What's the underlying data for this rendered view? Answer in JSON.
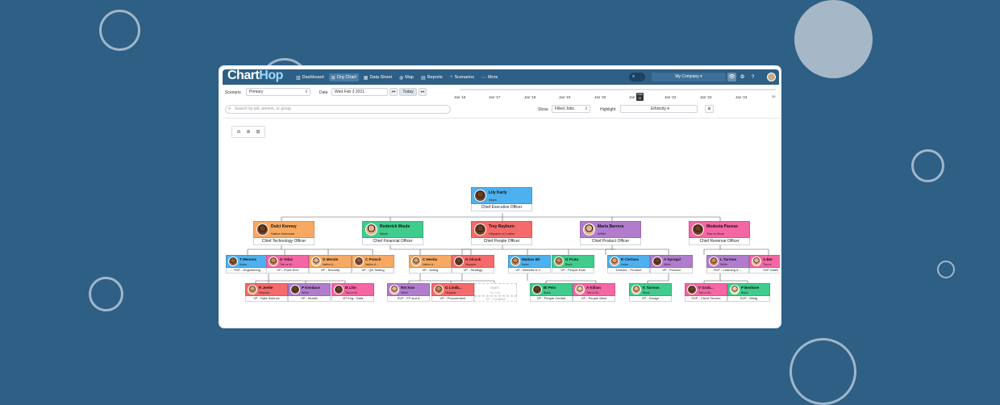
{
  "colors": {
    "background": "#2e5f85",
    "blue": "#4db1ef",
    "orange": "#f7a962",
    "green": "#3fcc8c",
    "red": "#f56a6a",
    "purple": "#b27cce",
    "pink": "#f466a4"
  },
  "app": {
    "logo_chart": "Chart",
    "logo_hop": "Hop",
    "nav": [
      {
        "label": "Dashboard",
        "icon": "bar-chart-icon"
      },
      {
        "label": "Org Chart",
        "icon": "org-chart-icon"
      },
      {
        "label": "Data Sheet",
        "icon": "table-icon"
      },
      {
        "label": "Map",
        "icon": "globe-icon"
      },
      {
        "label": "Reports",
        "icon": "reports-icon"
      },
      {
        "label": "Scenarios",
        "icon": "branch-icon"
      },
      {
        "label": "More",
        "icon": "menu-icon"
      }
    ],
    "company": "My Company",
    "search_glyph": "⌕",
    "header_glyphs": [
      "👁",
      "⚙",
      "?"
    ]
  },
  "toolbar": {
    "scenario_label": "Scenario",
    "scenario_value": "Primary",
    "date_label": "Date",
    "date_value": "Wed Feb 3 2021",
    "today_label": "Today",
    "prev_glyph": "⏮",
    "next_glyph": "⏭",
    "show_label": "Show",
    "show_value": "Filled Jobs",
    "highlight_label": "Highlight",
    "highlight_value": "Ethnicity",
    "search_placeholder": "Search by job, person, or group"
  },
  "timeline": {
    "ticks": [
      "Jan '16",
      "Jan '17",
      "Jan '18",
      "Jan '19",
      "Jan '20",
      "Jan '21",
      "Jan '22",
      "Jan '23",
      "Jan '24"
    ],
    "marker_top": "Feb",
    "marker_bottom": "21",
    "end_label": "20"
  },
  "zoom": [
    "⊖",
    "⊕",
    "⊞"
  ],
  "org": {
    "ceo": {
      "name": "Lily Karly",
      "eth": "Asian",
      "title": "Chief Executive Officer",
      "color": "blue"
    },
    "execs": [
      {
        "name": "Dulci Kenney",
        "eth": "Native American",
        "title": "Chief Technology Officer",
        "color": "orange"
      },
      {
        "name": "Roderick Moule",
        "eth": "Black",
        "title": "Chief Financial Officer",
        "color": "green"
      },
      {
        "name": "Trey Rayburn",
        "eth": "Hispanic or Latino",
        "title": "Chief People Officer",
        "color": "red"
      },
      {
        "name": "Maria Barrera",
        "eth": "White",
        "title": "Chief Product Officer",
        "color": "purple"
      },
      {
        "name": "Modesta Pavese",
        "eth": "Two or More",
        "title": "Chief Revenue Officer",
        "color": "pink"
      }
    ],
    "row3": [
      {
        "name": "T Menons",
        "eth": "Asian",
        "title": "SVP - Engineering",
        "color": "blue"
      },
      {
        "name": "G Yelac",
        "eth": "Two or M...",
        "title": "VP - Front End",
        "color": "pink"
      },
      {
        "name": "G Merate",
        "eth": "Native A...",
        "title": "VP - Security",
        "color": "orange"
      },
      {
        "name": "C Potach",
        "eth": "Native A...",
        "title": "VP - QA Testing",
        "color": "orange"
      },
      {
        "name": "C Hestia",
        "eth": "Native A...",
        "title": "VP - Acting",
        "color": "orange"
      },
      {
        "name": "G Alcock",
        "eth": "Hispanic",
        "title": "VP - Strategy",
        "color": "red"
      },
      {
        "name": "Mattias Bil",
        "eth": "Asian",
        "title": "VP - Benefits & C...",
        "color": "blue"
      },
      {
        "name": "G Fruta",
        "eth": "Black",
        "title": "VP - People East",
        "color": "green"
      },
      {
        "name": "R Cierlass",
        "eth": "Asian",
        "title": "Director - Product",
        "color": "blue"
      },
      {
        "name": "A Spregal",
        "eth": "White",
        "title": "VP - Product",
        "color": "purple"
      },
      {
        "name": "L Tarreus",
        "eth": "White",
        "title": "SVP - Learning & ...",
        "color": "purple"
      },
      {
        "name": "A Bet",
        "eth": "Two or",
        "title": "SVP Sales",
        "color": "pink"
      }
    ],
    "row4": [
      {
        "name": "R Jeetle",
        "eth": "Hispanic",
        "title": "VP - Data Science",
        "color": "red"
      },
      {
        "name": "P Kendace",
        "eth": "White",
        "title": "VP - Mobile",
        "color": "purple"
      },
      {
        "name": "B Lilte",
        "eth": "Two or M...",
        "title": "VP Eng - Data",
        "color": "pink"
      },
      {
        "name": "Ret Koo",
        "eth": "White",
        "title": "SVP - FP and A",
        "color": "purple"
      },
      {
        "name": "G Lindb...",
        "eth": "Hispanic",
        "title": "VP - Procurement",
        "color": "red"
      },
      {
        "name": "Open",
        "eth": "No Jobs",
        "title": "VP - Facilities",
        "color": "open"
      },
      {
        "name": "Bl Pein",
        "eth": "Black",
        "title": "VP - People Central",
        "color": "green"
      },
      {
        "name": "A Killam",
        "eth": "Two or M...",
        "title": "VP - People West",
        "color": "pink"
      },
      {
        "name": "K Tarreus",
        "eth": "Black",
        "title": "VP - Design",
        "color": "green"
      },
      {
        "name": "V Grub...",
        "eth": "Two or M...",
        "title": "SVP - Client Service",
        "color": "pink"
      },
      {
        "name": "P Beshore",
        "eth": "Black",
        "title": "SVP - Mrktg",
        "color": "green"
      }
    ]
  }
}
